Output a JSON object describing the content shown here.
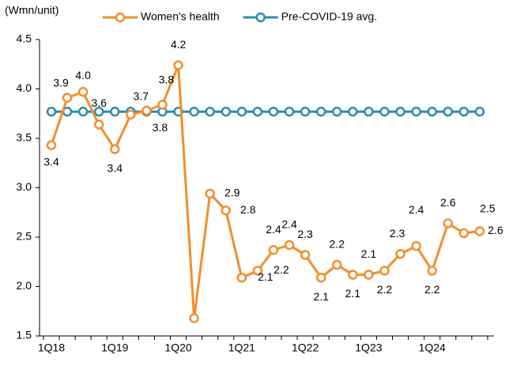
{
  "chart_data": {
    "type": "line",
    "y_label": "(Wmn/unit)",
    "categories": [
      "1Q18",
      null,
      null,
      null,
      "1Q19",
      null,
      null,
      null,
      "1Q20",
      null,
      null,
      null,
      "1Q21",
      null,
      null,
      null,
      "1Q22",
      null,
      null,
      null,
      "1Q23",
      null,
      null,
      null,
      "1Q24",
      null,
      null,
      null
    ],
    "series": [
      {
        "name": "Women's health",
        "color": "#f28e2b",
        "values": [
          3.43,
          3.91,
          3.97,
          3.64,
          3.39,
          3.74,
          3.78,
          3.84,
          4.24,
          1.68,
          2.94,
          2.77,
          2.09,
          2.16,
          2.37,
          2.42,
          2.32,
          2.09,
          2.22,
          2.12,
          2.12,
          2.16,
          2.33,
          2.41,
          2.16,
          2.64,
          2.54,
          2.56
        ],
        "value_labels": [
          "3.4",
          "3.9",
          "4.0",
          "3.6",
          "3.4",
          "3.7",
          "3.8",
          "3.8",
          "4.2",
          null,
          "2.9",
          "2.8",
          "2.1",
          "2.2",
          "2.4",
          "2.4",
          "2.3",
          "2.1",
          "2.2",
          "2.1",
          "2.1",
          "2.2",
          "2.3",
          "2.4",
          "2.2",
          "2.6",
          "2.5",
          "2.6"
        ]
      },
      {
        "name": "Pre-COVID-19 avg.",
        "color": "#2b8cae",
        "values": [
          3.77,
          3.77,
          3.77,
          3.77,
          3.77,
          3.77,
          3.77,
          3.77,
          3.77,
          3.77,
          3.77,
          3.77,
          3.77,
          3.77,
          3.77,
          3.77,
          3.77,
          3.77,
          3.77,
          3.77,
          3.77,
          3.77,
          3.77,
          3.77,
          3.77,
          3.77,
          3.77,
          3.77
        ]
      }
    ],
    "ylim": [
      1.5,
      4.5
    ],
    "yticks": [
      1.5,
      {
        "value": 2,
        "label": "2.0"
      },
      2.5,
      {
        "value": 3,
        "label": "3.0"
      },
      3.5,
      {
        "value": 4,
        "label": "4.0"
      },
      4.5
    ],
    "legend": "top",
    "grid": false
  }
}
